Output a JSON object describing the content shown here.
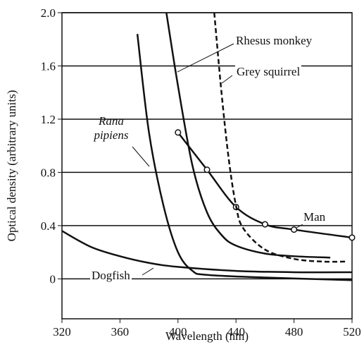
{
  "chart_data": {
    "type": "line",
    "x_label": "Wavelength (nm)",
    "y_label": "Optical density (arbitrary units)",
    "xlim": [
      320,
      520
    ],
    "xticks": [
      320,
      360,
      400,
      440,
      480,
      520
    ],
    "ylim": [
      -0.3,
      2.0
    ],
    "yticks": [
      {
        "value": 0,
        "label": "0"
      },
      0.4,
      0.8,
      1.2,
      1.6,
      {
        "value": 2,
        "label": "2.0"
      }
    ],
    "grid": true,
    "series": [
      {
        "name": "Man",
        "color": "#111111",
        "style": "solid",
        "marker": "circle",
        "x": [
          400,
          420,
          440,
          460,
          480,
          520
        ],
        "values": [
          1.1,
          0.82,
          0.54,
          0.41,
          0.37,
          0.31
        ]
      },
      {
        "name": "Rhesus monkey",
        "color": "#111111",
        "style": "solid",
        "marker": "none",
        "x": [
          392,
          400,
          410,
          420,
          430,
          440,
          460,
          480,
          505
        ],
        "values": [
          2.0,
          1.45,
          0.85,
          0.5,
          0.33,
          0.25,
          0.19,
          0.17,
          0.16
        ]
      },
      {
        "name": "Grey squirrel",
        "color": "#111111",
        "style": "dashed",
        "marker": "none",
        "x": [
          425,
          430,
          435,
          440,
          445,
          460,
          480,
          500,
          517
        ],
        "values": [
          2.0,
          1.4,
          0.9,
          0.55,
          0.38,
          0.22,
          0.15,
          0.13,
          0.13
        ]
      },
      {
        "name": "Rana pipiens",
        "color": "#111111",
        "style": "solid",
        "marker": "none",
        "x": [
          372,
          380,
          390,
          400,
          410,
          420,
          460,
          520
        ],
        "values": [
          1.84,
          1.1,
          0.55,
          0.2,
          0.06,
          0.03,
          0.01,
          -0.01
        ]
      },
      {
        "name": "Dogfish",
        "color": "#111111",
        "style": "solid",
        "marker": "none",
        "x": [
          320,
          340,
          360,
          380,
          400,
          440,
          480,
          520
        ],
        "values": [
          0.36,
          0.24,
          0.17,
          0.12,
          0.09,
          0.06,
          0.05,
          0.05
        ]
      }
    ]
  }
}
